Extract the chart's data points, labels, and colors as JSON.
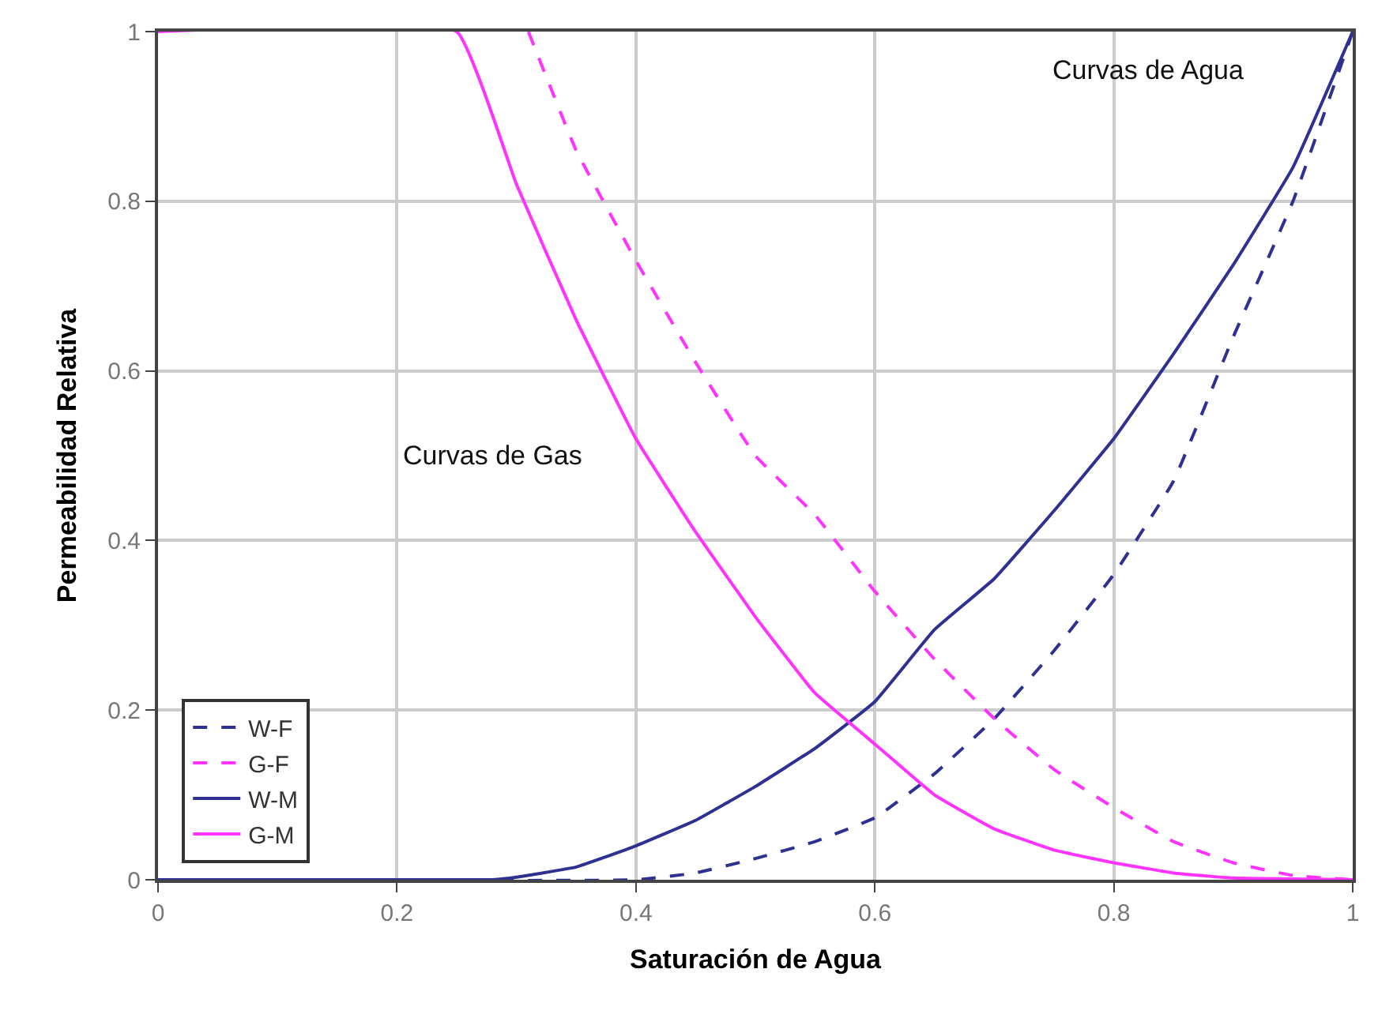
{
  "chart_data": {
    "type": "line",
    "xlabel": "Saturación de Agua",
    "ylabel": "Permeabilidad Relativa",
    "xlim": [
      0,
      1
    ],
    "ylim": [
      0,
      1
    ],
    "xticks": [
      0,
      0.2,
      0.4,
      0.6,
      0.8,
      1
    ],
    "yticks": [
      0,
      0.2,
      0.4,
      0.6,
      0.8,
      1
    ],
    "grid": true,
    "legend": "bottom left",
    "marker": "none",
    "series": [
      {
        "name": "W-F",
        "color": "#2e3192",
        "line_style": "dashed",
        "x": [
          0,
          0.4,
          0.45,
          0.5,
          0.55,
          0.6,
          0.65,
          0.7,
          0.75,
          0.8,
          0.85,
          0.9,
          0.95,
          1
        ],
        "values": [
          0,
          0,
          0.008,
          0.025,
          0.045,
          0.073,
          0.125,
          0.19,
          0.27,
          0.36,
          0.47,
          0.64,
          0.8,
          1
        ]
      },
      {
        "name": "G-F",
        "color": "#ff33ff",
        "line_style": "dashed",
        "x": [
          0.31,
          0.35,
          0.4,
          0.45,
          0.5,
          0.55,
          0.6,
          0.65,
          0.7,
          0.75,
          0.8,
          0.85,
          0.9,
          0.95,
          1
        ],
        "values": [
          1,
          0.86,
          0.73,
          0.61,
          0.5,
          0.43,
          0.34,
          0.26,
          0.19,
          0.13,
          0.085,
          0.045,
          0.02,
          0.005,
          0
        ]
      },
      {
        "name": "W-M",
        "color": "#2e3192",
        "line_style": "solid",
        "x": [
          0,
          0.28,
          0.3,
          0.35,
          0.4,
          0.45,
          0.5,
          0.55,
          0.6,
          0.65,
          0.7,
          0.75,
          0.8,
          0.85,
          0.9,
          0.95,
          1
        ],
        "values": [
          0,
          0,
          0.003,
          0.015,
          0.04,
          0.07,
          0.11,
          0.155,
          0.21,
          0.295,
          0.355,
          0.435,
          0.52,
          0.62,
          0.725,
          0.84,
          1
        ]
      },
      {
        "name": "G-M",
        "color": "#ff33ff",
        "line_style": "solid",
        "x": [
          0,
          0.25,
          0.3,
          0.35,
          0.4,
          0.45,
          0.5,
          0.55,
          0.6,
          0.65,
          0.7,
          0.75,
          0.8,
          0.85,
          0.9,
          1
        ],
        "values": [
          1,
          1,
          0.82,
          0.66,
          0.52,
          0.41,
          0.31,
          0.22,
          0.16,
          0.1,
          0.06,
          0.035,
          0.02,
          0.008,
          0.002,
          0
        ]
      }
    ],
    "annotations": [
      "Curvas de Gas",
      "Curvas de Agua"
    ]
  }
}
